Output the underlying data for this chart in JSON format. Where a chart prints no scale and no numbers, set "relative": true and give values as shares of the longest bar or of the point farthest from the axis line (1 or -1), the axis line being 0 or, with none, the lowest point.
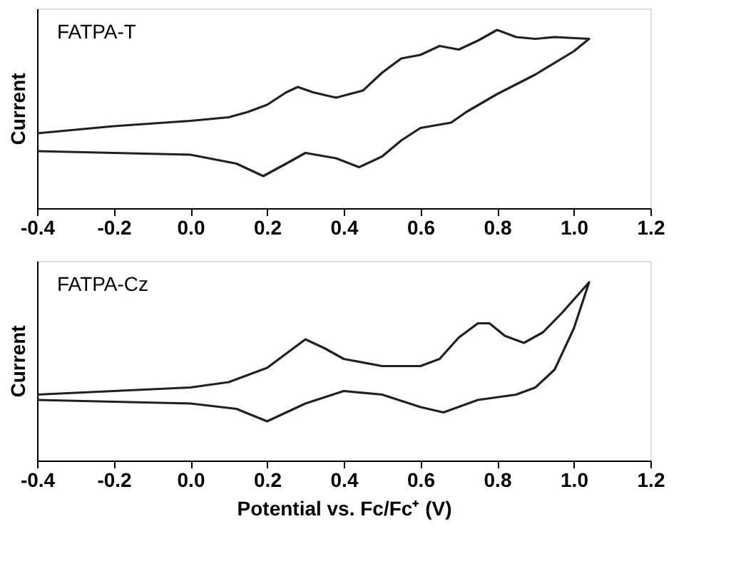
{
  "chart_data": [
    {
      "type": "line",
      "relative": true,
      "ylabel": "Current",
      "annotations": [
        "FATPA-T"
      ],
      "grid": false,
      "marker": "none",
      "line_style": "solid",
      "xlim": [
        -0.4,
        1.2
      ],
      "xticks": [
        {
          "value": -0.4,
          "label": "-0.4"
        },
        {
          "value": -0.2,
          "label": "-0.2"
        },
        {
          "value": 0,
          "label": "0.0"
        },
        {
          "value": 0.2,
          "label": "0.2"
        },
        {
          "value": 0.4,
          "label": "0.4"
        },
        {
          "value": 0.6,
          "label": "0.6"
        },
        {
          "value": 0.8,
          "label": "0.8"
        },
        {
          "value": 1.0,
          "label": "1.0"
        },
        {
          "value": 1.2,
          "label": "1.2"
        }
      ],
      "series": [
        {
          "color": "#231f20",
          "x": [
            -0.4,
            -0.2,
            0.0,
            0.1,
            0.15,
            0.2,
            0.25,
            0.28,
            0.32,
            0.38,
            0.45,
            0.5,
            0.55,
            0.6,
            0.65,
            0.7,
            0.75,
            0.8,
            0.85,
            0.9,
            0.95,
            1.04,
            1.0,
            0.9,
            0.8,
            0.72,
            0.68,
            0.6,
            0.55,
            0.5,
            0.44,
            0.38,
            0.3,
            0.25,
            0.19,
            0.12,
            0.0,
            -0.2,
            -0.4
          ],
          "values": [
            0.42,
            0.46,
            0.49,
            0.51,
            0.54,
            0.58,
            0.65,
            0.68,
            0.65,
            0.62,
            0.66,
            0.76,
            0.84,
            0.86,
            0.91,
            0.89,
            0.94,
            1.0,
            0.96,
            0.95,
            0.96,
            0.95,
            0.88,
            0.75,
            0.64,
            0.54,
            0.48,
            0.45,
            0.38,
            0.29,
            0.23,
            0.28,
            0.31,
            0.25,
            0.18,
            0.25,
            0.3,
            0.31,
            0.32
          ]
        }
      ]
    },
    {
      "type": "line",
      "relative": true,
      "ylabel": "Current",
      "xlabel": "Potential vs. Fc/Fc⁺ (V)",
      "annotations": [
        "FATPA-Cz"
      ],
      "grid": false,
      "marker": "none",
      "line_style": "solid",
      "xlim": [
        -0.4,
        1.2
      ],
      "xticks": [
        {
          "value": -0.4,
          "label": "-0.4"
        },
        {
          "value": -0.2,
          "label": "-0.2"
        },
        {
          "value": 0,
          "label": "0.0"
        },
        {
          "value": 0.2,
          "label": "0.2"
        },
        {
          "value": 0.4,
          "label": "0.4"
        },
        {
          "value": 0.6,
          "label": "0.6"
        },
        {
          "value": 0.8,
          "label": "0.8"
        },
        {
          "value": 1.0,
          "label": "1.0"
        },
        {
          "value": 1.2,
          "label": "1.2"
        }
      ],
      "series": [
        {
          "color": "#231f20",
          "x": [
            -0.4,
            -0.2,
            0.0,
            0.1,
            0.2,
            0.25,
            0.3,
            0.35,
            0.4,
            0.5,
            0.6,
            0.65,
            0.7,
            0.75,
            0.78,
            0.82,
            0.87,
            0.92,
            0.97,
            1.04,
            1.0,
            0.95,
            0.9,
            0.85,
            0.75,
            0.66,
            0.6,
            0.5,
            0.4,
            0.3,
            0.2,
            0.12,
            0.0,
            -0.4
          ],
          "values": [
            0.37,
            0.39,
            0.41,
            0.44,
            0.52,
            0.6,
            0.68,
            0.63,
            0.57,
            0.53,
            0.53,
            0.57,
            0.69,
            0.77,
            0.77,
            0.7,
            0.66,
            0.72,
            0.83,
            1.0,
            0.74,
            0.51,
            0.41,
            0.37,
            0.34,
            0.27,
            0.3,
            0.37,
            0.39,
            0.32,
            0.22,
            0.29,
            0.32,
            0.34
          ]
        }
      ]
    }
  ]
}
